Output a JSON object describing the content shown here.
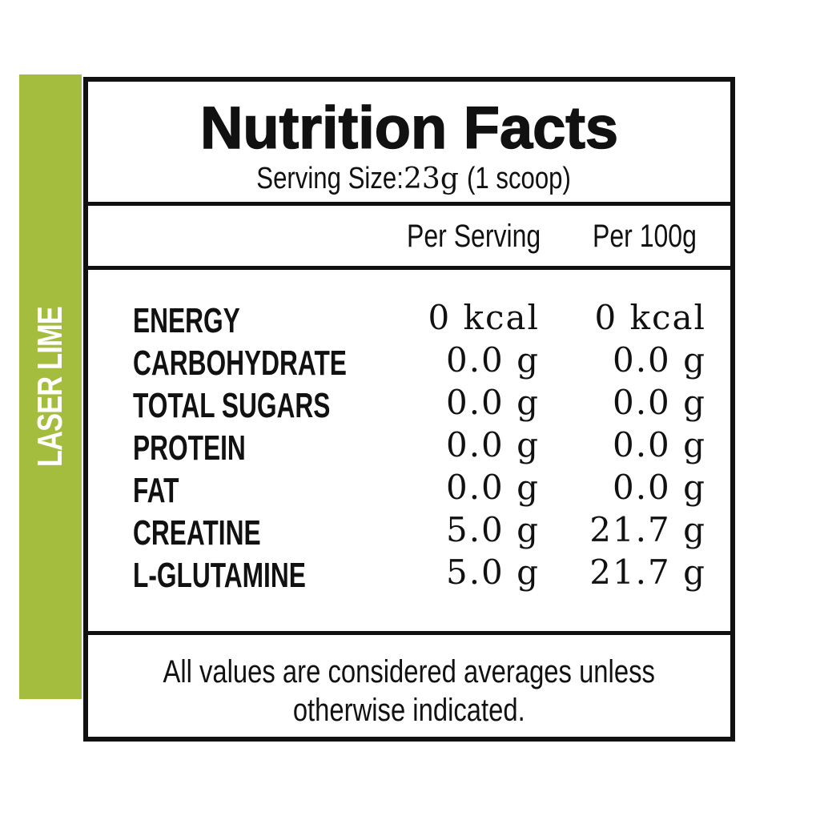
{
  "flavor": "LASER LIME",
  "colors": {
    "accent": "#a5bd3e",
    "ink": "#111111",
    "background": "#ffffff"
  },
  "label": {
    "title": "Nutrition Facts",
    "serving_label": "Serving Size:",
    "serving_value": "23g",
    "serving_note": "(1 scoop)"
  },
  "columns": {
    "per_serving": "Per Serving",
    "per_100g": "Per 100g"
  },
  "nutrients": [
    {
      "name": "ENERGY",
      "per_serving": "0 kcal",
      "per_100g": "0 kcal"
    },
    {
      "name": "CARBOHYDRATE",
      "per_serving": "0.0 g",
      "per_100g": "0.0 g"
    },
    {
      "name": "TOTAL SUGARS",
      "per_serving": "0.0 g",
      "per_100g": "0.0 g"
    },
    {
      "name": "PROTEIN",
      "per_serving": "0.0 g",
      "per_100g": "0.0 g"
    },
    {
      "name": "FAT",
      "per_serving": "0.0 g",
      "per_100g": "0.0 g"
    },
    {
      "name": "CREATINE",
      "per_serving": "5.0 g",
      "per_100g": "21.7 g"
    },
    {
      "name": "L-GLUTAMINE",
      "per_serving": "5.0 g",
      "per_100g": "21.7 g"
    }
  ],
  "footnote": {
    "line1": "All values are considered averages unless",
    "line2": "otherwise indicated."
  }
}
